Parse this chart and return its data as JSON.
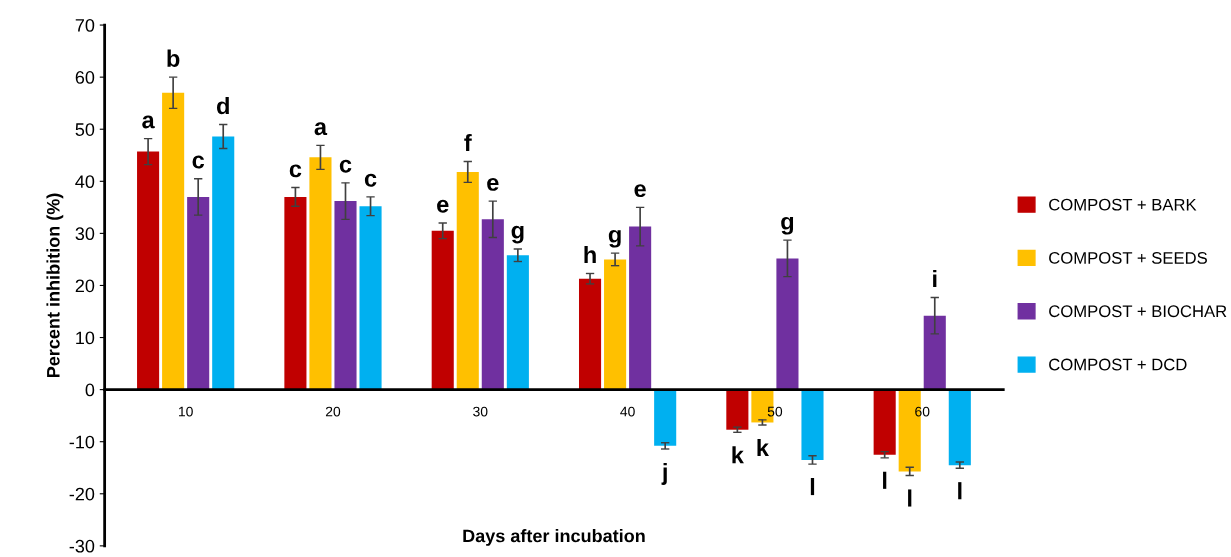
{
  "chart_data": {
    "type": "bar",
    "xlabel": "Days after incubation",
    "ylabel": "Percent inhibition (%)",
    "categories": [
      "10",
      "20",
      "30",
      "40",
      "50",
      "60"
    ],
    "ylim": [
      -30,
      70
    ],
    "yticks": [
      -30,
      -20,
      -10,
      0,
      10,
      20,
      30,
      40,
      50,
      60,
      70
    ],
    "legend": "right",
    "grid": false,
    "series": [
      {
        "name": "COMPOST + BARK",
        "color": "#c00000",
        "values": [
          45.7,
          37.0,
          30.5,
          21.3,
          -7.7,
          -12.5
        ],
        "errors": [
          2.5,
          1.8,
          1.5,
          1.0,
          0.5,
          0.6
        ],
        "value_labels": [
          "a",
          "c",
          "e",
          "h",
          "k",
          "l"
        ]
      },
      {
        "name": "COMPOST + SEEDS",
        "color": "#ffc000",
        "values": [
          57.0,
          44.6,
          41.8,
          25.0,
          -6.3,
          -15.7
        ],
        "errors": [
          3.0,
          2.3,
          2.0,
          1.2,
          0.5,
          0.8
        ],
        "value_labels": [
          "b",
          "a",
          "f",
          "g",
          "k",
          "l"
        ]
      },
      {
        "name": "COMPOST + BIOCHAR",
        "color": "#7030a0",
        "values": [
          37.0,
          36.2,
          32.7,
          31.3,
          25.2,
          14.2
        ],
        "errors": [
          3.5,
          3.5,
          3.5,
          3.7,
          3.5,
          3.5
        ],
        "value_labels": [
          "c",
          "c",
          "e",
          "e",
          "g",
          "i"
        ]
      },
      {
        "name": "COMPOST + DCD",
        "color": "#00b0f0",
        "values": [
          48.6,
          35.2,
          25.8,
          -10.8,
          -13.5,
          -14.5
        ],
        "errors": [
          2.3,
          1.8,
          1.2,
          0.6,
          0.8,
          0.6
        ],
        "value_labels": [
          "d",
          "c",
          "g",
          "j",
          "l",
          "l"
        ]
      }
    ]
  }
}
